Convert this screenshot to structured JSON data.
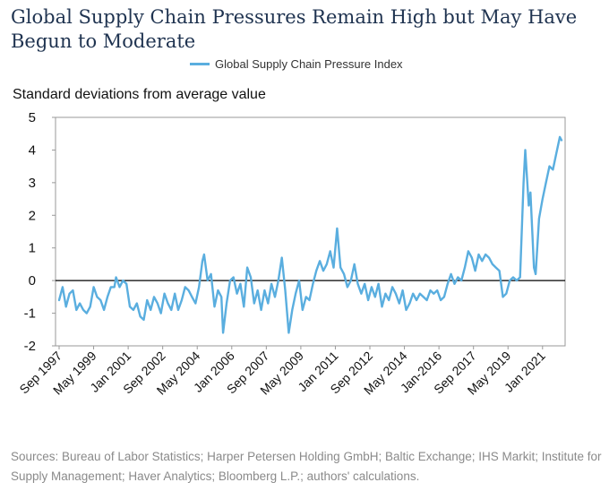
{
  "header": {
    "title": "Global Supply Chain Pressures Remain High but May Have Begun to Moderate"
  },
  "footer": {
    "source": "Sources: Bureau of Labor Statistics; Harper Petersen Holding GmbH; Baltic Exchange; IHS Markit; Institute for Supply Management; Haver Analytics; Bloomberg L.P.; authors' calculations."
  },
  "chart_data": {
    "type": "line",
    "title": "Global Supply Chain Pressures Remain High but May Have Begun to Moderate",
    "ylabel": "Standard deviations from average value",
    "xlabel": "",
    "ylim": [
      -2,
      5
    ],
    "yticks": [
      -2,
      -1,
      0,
      1,
      2,
      3,
      4,
      5
    ],
    "xrange": [
      "1997-09",
      "2021-12"
    ],
    "xticks": [
      {
        "label": "Sep 1997",
        "date": "1997-09"
      },
      {
        "label": "May 1999",
        "date": "1999-05"
      },
      {
        "label": "Jan 2001",
        "date": "2001-01"
      },
      {
        "label": "Sep 2002",
        "date": "2002-09"
      },
      {
        "label": "May 2004",
        "date": "2004-05"
      },
      {
        "label": "Jan 2006",
        "date": "2006-01"
      },
      {
        "label": "Sep 2007",
        "date": "2007-09"
      },
      {
        "label": "May 2009",
        "date": "2009-05"
      },
      {
        "label": "Jan 2011",
        "date": "2011-01"
      },
      {
        "label": "Sep 2012",
        "date": "2012-09"
      },
      {
        "label": "May 2014",
        "date": "2014-05"
      },
      {
        "label": "Jan-2016",
        "date": "2016-01"
      },
      {
        "label": "Sep 2017",
        "date": "2017-09"
      },
      {
        "label": "May 2019",
        "date": "2019-05"
      },
      {
        "label": "Jan 2021",
        "date": "2021-01"
      }
    ],
    "legend_position": "top-center",
    "zero_line": true,
    "grid": false,
    "series": [
      {
        "name": "Global Supply Chain Pressure Index",
        "color": "#5aaedf",
        "points": [
          [
            "1997-09",
            -0.6
          ],
          [
            "1997-11",
            -0.2
          ],
          [
            "1998-01",
            -0.8
          ],
          [
            "1998-03",
            -0.4
          ],
          [
            "1998-05",
            -0.3
          ],
          [
            "1998-07",
            -0.9
          ],
          [
            "1998-09",
            -0.7
          ],
          [
            "1998-11",
            -0.9
          ],
          [
            "1999-01",
            -1.0
          ],
          [
            "1999-03",
            -0.8
          ],
          [
            "1999-05",
            -0.2
          ],
          [
            "1999-07",
            -0.5
          ],
          [
            "1999-09",
            -0.6
          ],
          [
            "1999-11",
            -0.9
          ],
          [
            "2000-01",
            -0.5
          ],
          [
            "2000-03",
            -0.2
          ],
          [
            "2000-05",
            -0.2
          ],
          [
            "2000-06",
            0.1
          ],
          [
            "2000-08",
            -0.2
          ],
          [
            "2000-10",
            0.0
          ],
          [
            "2000-12",
            -0.1
          ],
          [
            "2001-02",
            -0.8
          ],
          [
            "2001-04",
            -0.9
          ],
          [
            "2001-06",
            -0.7
          ],
          [
            "2001-08",
            -1.1
          ],
          [
            "2001-10",
            -1.2
          ],
          [
            "2001-12",
            -0.6
          ],
          [
            "2002-02",
            -0.9
          ],
          [
            "2002-04",
            -0.5
          ],
          [
            "2002-06",
            -0.7
          ],
          [
            "2002-08",
            -1.0
          ],
          [
            "2002-10",
            -0.4
          ],
          [
            "2002-12",
            -0.7
          ],
          [
            "2003-02",
            -0.9
          ],
          [
            "2003-04",
            -0.4
          ],
          [
            "2003-06",
            -0.9
          ],
          [
            "2003-08",
            -0.6
          ],
          [
            "2003-10",
            -0.2
          ],
          [
            "2003-12",
            -0.3
          ],
          [
            "2004-02",
            -0.5
          ],
          [
            "2004-04",
            -0.7
          ],
          [
            "2004-06",
            -0.2
          ],
          [
            "2004-08",
            0.6
          ],
          [
            "2004-09",
            0.8
          ],
          [
            "2004-11",
            0.0
          ],
          [
            "2005-01",
            0.2
          ],
          [
            "2005-03",
            -0.8
          ],
          [
            "2005-05",
            -0.3
          ],
          [
            "2005-07",
            -0.5
          ],
          [
            "2005-08",
            -1.6
          ],
          [
            "2005-10",
            -0.7
          ],
          [
            "2005-12",
            0.0
          ],
          [
            "2006-02",
            0.1
          ],
          [
            "2006-04",
            -0.4
          ],
          [
            "2006-06",
            -0.1
          ],
          [
            "2006-08",
            -0.8
          ],
          [
            "2006-10",
            0.4
          ],
          [
            "2006-12",
            0.1
          ],
          [
            "2007-02",
            -0.7
          ],
          [
            "2007-04",
            -0.3
          ],
          [
            "2007-06",
            -0.9
          ],
          [
            "2007-08",
            -0.3
          ],
          [
            "2007-10",
            -0.7
          ],
          [
            "2007-12",
            -0.1
          ],
          [
            "2008-02",
            -0.5
          ],
          [
            "2008-04",
            0.0
          ],
          [
            "2008-06",
            0.7
          ],
          [
            "2008-08",
            -0.3
          ],
          [
            "2008-10",
            -1.6
          ],
          [
            "2008-12",
            -0.9
          ],
          [
            "2009-02",
            -0.4
          ],
          [
            "2009-04",
            0.0
          ],
          [
            "2009-06",
            -0.9
          ],
          [
            "2009-08",
            -0.5
          ],
          [
            "2009-10",
            -0.6
          ],
          [
            "2009-12",
            -0.1
          ],
          [
            "2010-02",
            0.3
          ],
          [
            "2010-04",
            0.6
          ],
          [
            "2010-06",
            0.3
          ],
          [
            "2010-08",
            0.5
          ],
          [
            "2010-10",
            0.9
          ],
          [
            "2010-12",
            0.4
          ],
          [
            "2011-02",
            1.6
          ],
          [
            "2011-04",
            0.4
          ],
          [
            "2011-06",
            0.2
          ],
          [
            "2011-08",
            -0.2
          ],
          [
            "2011-10",
            0.0
          ],
          [
            "2011-12",
            0.5
          ],
          [
            "2012-02",
            -0.1
          ],
          [
            "2012-04",
            -0.4
          ],
          [
            "2012-06",
            -0.1
          ],
          [
            "2012-08",
            -0.6
          ],
          [
            "2012-10",
            -0.2
          ],
          [
            "2012-12",
            -0.5
          ],
          [
            "2013-02",
            -0.1
          ],
          [
            "2013-04",
            -0.8
          ],
          [
            "2013-06",
            -0.4
          ],
          [
            "2013-08",
            -0.6
          ],
          [
            "2013-10",
            -0.2
          ],
          [
            "2013-12",
            -0.4
          ],
          [
            "2014-02",
            -0.7
          ],
          [
            "2014-04",
            -0.3
          ],
          [
            "2014-06",
            -0.9
          ],
          [
            "2014-08",
            -0.7
          ],
          [
            "2014-10",
            -0.4
          ],
          [
            "2014-12",
            -0.6
          ],
          [
            "2015-02",
            -0.4
          ],
          [
            "2015-04",
            -0.5
          ],
          [
            "2015-06",
            -0.6
          ],
          [
            "2015-08",
            -0.3
          ],
          [
            "2015-10",
            -0.4
          ],
          [
            "2015-12",
            -0.3
          ],
          [
            "2016-02",
            -0.6
          ],
          [
            "2016-04",
            -0.5
          ],
          [
            "2016-06",
            -0.1
          ],
          [
            "2016-08",
            0.2
          ],
          [
            "2016-10",
            -0.1
          ],
          [
            "2016-12",
            0.1
          ],
          [
            "2017-02",
            0.0
          ],
          [
            "2017-04",
            0.4
          ],
          [
            "2017-06",
            0.9
          ],
          [
            "2017-08",
            0.7
          ],
          [
            "2017-10",
            0.3
          ],
          [
            "2017-12",
            0.8
          ],
          [
            "2018-02",
            0.6
          ],
          [
            "2018-04",
            0.8
          ],
          [
            "2018-06",
            0.7
          ],
          [
            "2018-08",
            0.5
          ],
          [
            "2018-10",
            0.4
          ],
          [
            "2018-12",
            0.3
          ],
          [
            "2019-02",
            -0.5
          ],
          [
            "2019-04",
            -0.4
          ],
          [
            "2019-06",
            0.0
          ],
          [
            "2019-08",
            0.1
          ],
          [
            "2019-10",
            0.0
          ],
          [
            "2019-12",
            0.1
          ],
          [
            "2020-02",
            3.0
          ],
          [
            "2020-03",
            4.0
          ],
          [
            "2020-05",
            2.3
          ],
          [
            "2020-06",
            2.7
          ],
          [
            "2020-08",
            0.4
          ],
          [
            "2020-09",
            0.2
          ],
          [
            "2020-11",
            1.9
          ],
          [
            "2021-01",
            2.5
          ],
          [
            "2021-03",
            3.0
          ],
          [
            "2021-05",
            3.5
          ],
          [
            "2021-07",
            3.4
          ],
          [
            "2021-09",
            3.9
          ],
          [
            "2021-11",
            4.4
          ],
          [
            "2021-12",
            4.3
          ]
        ]
      }
    ]
  }
}
